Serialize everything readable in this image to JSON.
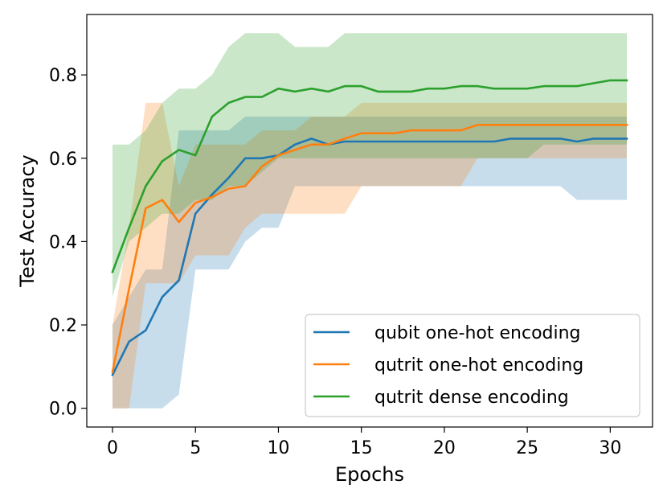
{
  "chart_data": {
    "type": "line",
    "title": "",
    "xlabel": "Epochs",
    "ylabel": "Test Accuracy",
    "xlim": [
      -1.55,
      32.55
    ],
    "ylim": [
      -0.045,
      0.945
    ],
    "xticks": [
      "0",
      "5",
      "10",
      "15",
      "20",
      "25",
      "30"
    ],
    "yticks": [
      "0.0",
      "0.2",
      "0.4",
      "0.6",
      "0.8"
    ],
    "grid": false,
    "legend_position": "lower-right",
    "x": [
      0,
      1,
      2,
      3,
      4,
      5,
      6,
      7,
      8,
      9,
      10,
      11,
      12,
      13,
      14,
      15,
      16,
      17,
      18,
      19,
      20,
      21,
      22,
      23,
      24,
      25,
      26,
      27,
      28,
      29,
      30,
      31
    ],
    "series": [
      {
        "name": "qubit one-hot encoding",
        "color": "#1f77b4",
        "values": [
          0.08,
          0.16,
          0.187,
          0.267,
          0.307,
          0.467,
          0.513,
          0.553,
          0.6,
          0.6,
          0.607,
          0.633,
          0.647,
          0.633,
          0.64,
          0.64,
          0.64,
          0.64,
          0.64,
          0.64,
          0.64,
          0.64,
          0.64,
          0.64,
          0.647,
          0.647,
          0.647,
          0.647,
          0.64,
          0.647,
          0.647,
          0.647
        ],
        "lower": [
          0.0,
          0.0,
          0.0,
          0.0,
          0.033,
          0.333,
          0.333,
          0.333,
          0.4,
          0.433,
          0.433,
          0.533,
          0.533,
          0.533,
          0.533,
          0.533,
          0.533,
          0.533,
          0.533,
          0.533,
          0.533,
          0.533,
          0.533,
          0.533,
          0.533,
          0.533,
          0.533,
          0.533,
          0.5,
          0.5,
          0.5,
          0.5
        ],
        "upper": [
          0.2,
          0.267,
          0.333,
          0.333,
          0.667,
          0.667,
          0.667,
          0.667,
          0.7,
          0.7,
          0.7,
          0.7,
          0.7,
          0.7,
          0.7,
          0.7,
          0.7,
          0.7,
          0.7,
          0.7,
          0.7,
          0.7,
          0.7,
          0.7,
          0.7,
          0.7,
          0.7,
          0.7,
          0.7,
          0.7,
          0.7,
          0.7
        ]
      },
      {
        "name": "qutrit one-hot encoding",
        "color": "#ff7f0e",
        "values": [
          0.087,
          0.287,
          0.48,
          0.5,
          0.447,
          0.493,
          0.507,
          0.527,
          0.533,
          0.58,
          0.607,
          0.62,
          0.633,
          0.633,
          0.647,
          0.66,
          0.66,
          0.66,
          0.667,
          0.667,
          0.667,
          0.667,
          0.68,
          0.68,
          0.68,
          0.68,
          0.68,
          0.68,
          0.68,
          0.68,
          0.68,
          0.68
        ],
        "lower": [
          0.0,
          0.0,
          0.3,
          0.3,
          0.3,
          0.367,
          0.367,
          0.367,
          0.433,
          0.467,
          0.467,
          0.467,
          0.467,
          0.467,
          0.467,
          0.533,
          0.533,
          0.533,
          0.533,
          0.533,
          0.533,
          0.533,
          0.6,
          0.6,
          0.6,
          0.6,
          0.6,
          0.6,
          0.6,
          0.6,
          0.6,
          0.6
        ],
        "upper": [
          0.2,
          0.433,
          0.733,
          0.733,
          0.533,
          0.633,
          0.633,
          0.633,
          0.633,
          0.667,
          0.667,
          0.667,
          0.7,
          0.7,
          0.7,
          0.733,
          0.733,
          0.733,
          0.733,
          0.733,
          0.733,
          0.733,
          0.733,
          0.733,
          0.733,
          0.733,
          0.733,
          0.733,
          0.733,
          0.733,
          0.733,
          0.733
        ]
      },
      {
        "name": "qutrit dense encoding",
        "color": "#2ca02c",
        "values": [
          0.327,
          0.433,
          0.533,
          0.593,
          0.62,
          0.607,
          0.7,
          0.733,
          0.747,
          0.747,
          0.767,
          0.76,
          0.767,
          0.76,
          0.773,
          0.773,
          0.76,
          0.76,
          0.76,
          0.767,
          0.767,
          0.773,
          0.773,
          0.767,
          0.767,
          0.767,
          0.773,
          0.773,
          0.773,
          0.78,
          0.787,
          0.787
        ],
        "lower": [
          0.267,
          0.4,
          0.433,
          0.467,
          0.467,
          0.5,
          0.5,
          0.533,
          0.533,
          0.567,
          0.6,
          0.6,
          0.6,
          0.6,
          0.6,
          0.6,
          0.6,
          0.6,
          0.6,
          0.6,
          0.6,
          0.6,
          0.6,
          0.6,
          0.6,
          0.6,
          0.633,
          0.633,
          0.633,
          0.633,
          0.633,
          0.633
        ],
        "upper": [
          0.633,
          0.633,
          0.667,
          0.733,
          0.767,
          0.767,
          0.8,
          0.867,
          0.9,
          0.9,
          0.9,
          0.867,
          0.867,
          0.867,
          0.9,
          0.9,
          0.9,
          0.9,
          0.9,
          0.9,
          0.9,
          0.9,
          0.9,
          0.9,
          0.9,
          0.9,
          0.9,
          0.9,
          0.9,
          0.9,
          0.9,
          0.9
        ]
      }
    ]
  }
}
